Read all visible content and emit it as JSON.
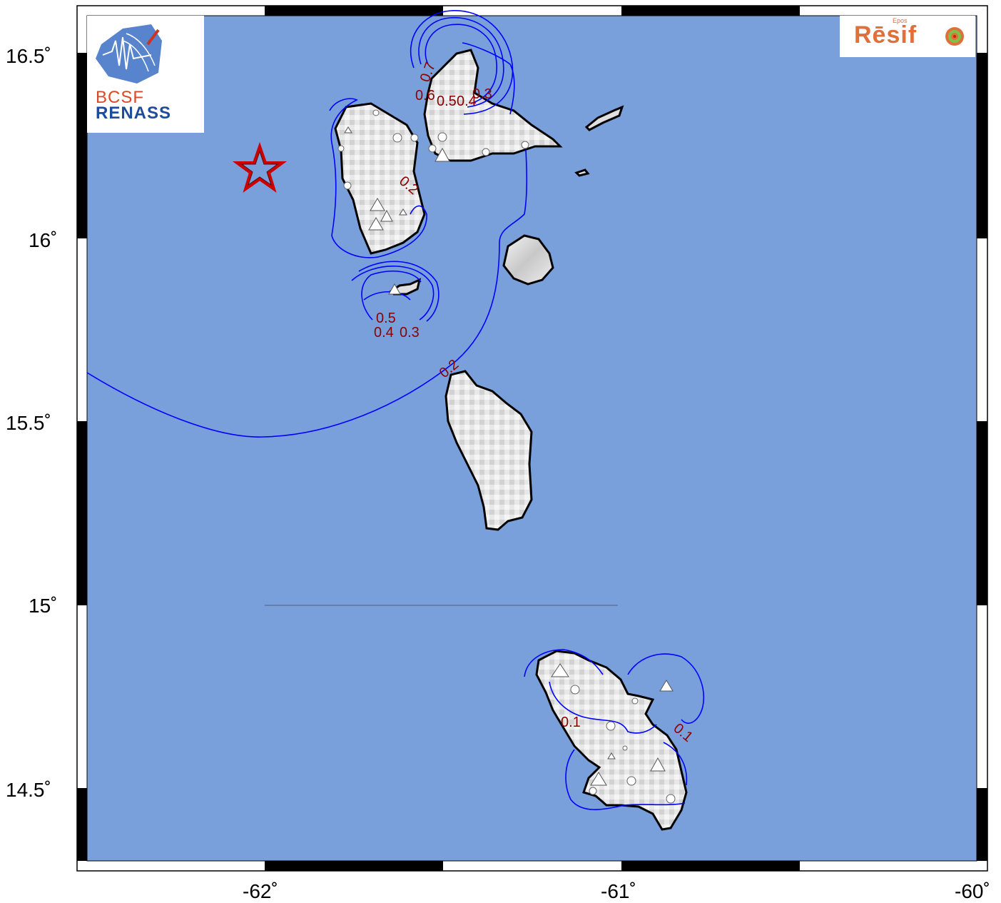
{
  "map": {
    "x_axis_ticks": [
      "-62˚",
      "-61˚",
      "-60˚"
    ],
    "y_axis_ticks": [
      "16.5˚",
      "16˚",
      "15.5˚",
      "15˚",
      "14.5˚"
    ],
    "colors": {
      "sea": "#7aa0dc",
      "contour": "#0000ff",
      "contour_label": "#8b0000",
      "epicenter": "#cc0000"
    },
    "contour_labels": [
      "0.7",
      "0.6",
      "0.5",
      "0.4",
      "0.3",
      "0.2",
      "0.5",
      "0.4",
      "0.3",
      "0.2",
      "0.1",
      "0.1"
    ],
    "epicenter_icon": "star-icon"
  },
  "logos": {
    "left": {
      "line1": "BCSF",
      "line2": "RENASS"
    },
    "right": {
      "name": "Rēsif",
      "epos": "Epos"
    }
  }
}
